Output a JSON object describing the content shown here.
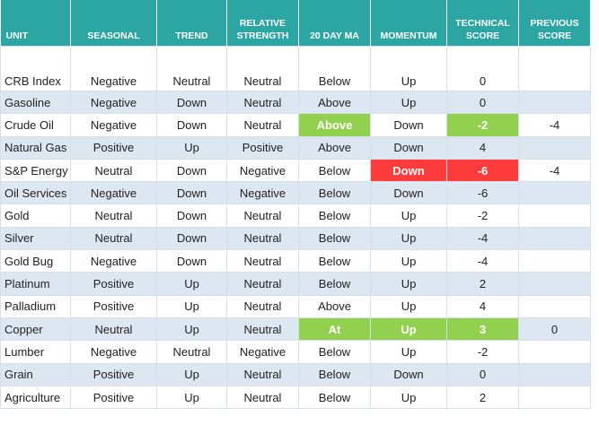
{
  "table": {
    "headers": [
      "UNIT",
      "SEASONAL",
      "TREND",
      "RELATIVE STRENGTH",
      "20 DAY MA",
      "MOMENTUM",
      "TECHNICAL SCORE",
      "PREVIOUS SCORE"
    ],
    "rows": [
      {
        "cells": [
          "CRB Index",
          "Negative",
          "Neutral",
          "Neutral",
          "Below",
          "Up",
          "0",
          null
        ]
      },
      {
        "cells": [
          "Gasoline",
          "Negative",
          "Down",
          "Neutral",
          "Above",
          "Up",
          "0",
          null
        ]
      },
      {
        "cells": [
          "Crude Oil",
          "Negative",
          "Down",
          "Neutral",
          "Above",
          "Down",
          "-2",
          "-4"
        ],
        "highlight": {
          "4": "#92d050",
          "6": "#92d050"
        }
      },
      {
        "cells": [
          "Natural Gas",
          "Positive",
          "Up",
          "Positive",
          "Above",
          "Down",
          "4",
          null
        ]
      },
      {
        "cells": [
          "S&P Energy",
          "Neutral",
          "Down",
          "Negative",
          "Below",
          "Down",
          "-6",
          "-4"
        ],
        "highlight": {
          "5": "#ff3b3b",
          "6": "#ff3b3b"
        }
      },
      {
        "cells": [
          "Oil Services",
          "Negative",
          "Down",
          "Negative",
          "Below",
          "Down",
          "-6",
          null
        ]
      },
      {
        "cells": [
          "Gold",
          "Neutral",
          "Down",
          "Neutral",
          "Below",
          "Up",
          "-2",
          null
        ]
      },
      {
        "cells": [
          "Silver",
          "Neutral",
          "Down",
          "Neutral",
          "Below",
          "Up",
          "-4",
          null
        ]
      },
      {
        "cells": [
          "Gold Bug",
          "Negative",
          "Down",
          "Neutral",
          "Below",
          "Up",
          "-4",
          null
        ]
      },
      {
        "cells": [
          "Platinum",
          "Positive",
          "Up",
          "Neutral",
          "Below",
          "Up",
          "2",
          null
        ]
      },
      {
        "cells": [
          "Palladium",
          "Positive",
          "Up",
          "Neutral",
          "Above",
          "Up",
          "4",
          null
        ]
      },
      {
        "cells": [
          "Copper",
          "Neutral",
          "Up",
          "Neutral",
          "At",
          "Up",
          "3",
          "0"
        ],
        "highlight": {
          "4": "#92d050",
          "5": "#92d050",
          "6": "#92d050"
        }
      },
      {
        "cells": [
          "Lumber",
          "Negative",
          "Neutral",
          "Negative",
          "Below",
          "Up",
          "-2",
          null
        ]
      },
      {
        "cells": [
          "Grain",
          "Positive",
          "Up",
          "Neutral",
          "Below",
          "Down",
          "0",
          null
        ]
      },
      {
        "cells": [
          "Agriculture",
          "Positive",
          "Up",
          "Neutral",
          "Below",
          "Up",
          "2",
          null
        ]
      }
    ]
  }
}
